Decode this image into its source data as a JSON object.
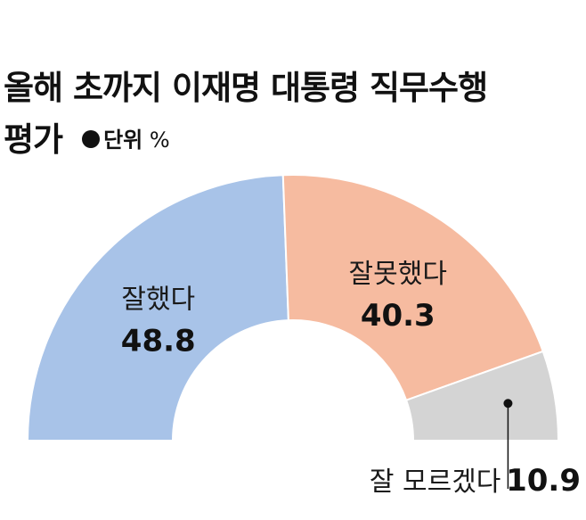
{
  "title_line1": "올해 초까지 이재명 대통령 직무수행",
  "title_line2": "평가",
  "unit_label": "단위",
  "unit_symbol": "%",
  "chart_data": {
    "type": "pie",
    "categories": [
      "잘했다",
      "잘못했다",
      "잘 모르겠다"
    ],
    "values": [
      48.8,
      40.3,
      10.9
    ],
    "value_labels": [
      "48.8",
      "40.3",
      "10.9"
    ],
    "colors": [
      "#a8c3e8",
      "#f6bba0",
      "#d4d4d4"
    ]
  }
}
